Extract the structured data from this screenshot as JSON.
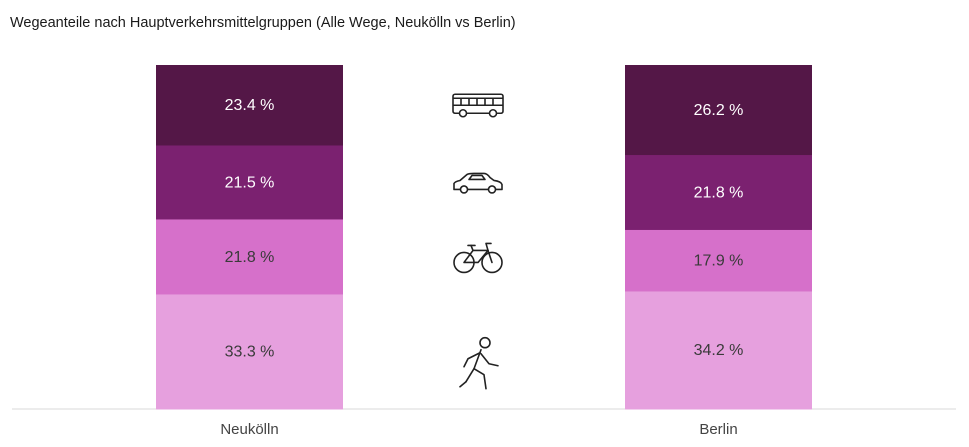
{
  "chart_data": {
    "type": "bar",
    "stacked": true,
    "normalized": true,
    "title": "Wegeanteile nach Hauptverkehrsmittelgruppen (Alle Wege, Neukölln vs Berlin)",
    "categories": [
      "Neukölln",
      "Berlin"
    ],
    "series": [
      {
        "icon": "bus-icon",
        "color": "#541747",
        "label_color": "#ffffff",
        "values": [
          23.4,
          26.2
        ],
        "labels": [
          "23.4 %",
          "26.2 %"
        ]
      },
      {
        "icon": "car-icon",
        "color": "#7B2170",
        "label_color": "#ffffff",
        "values": [
          21.5,
          21.8
        ],
        "labels": [
          "21.5 %",
          "21.8 %"
        ]
      },
      {
        "icon": "bicycle-icon",
        "color": "#D670CA",
        "label_color": "#3a3a3a",
        "values": [
          21.8,
          17.9
        ],
        "labels": [
          "21.8 %",
          "17.9 %"
        ]
      },
      {
        "icon": "pedestrian-icon",
        "color": "#E6A0DE",
        "label_color": "#3a3a3a",
        "values": [
          33.3,
          34.2
        ],
        "labels": [
          "33.3 %",
          "34.2 %"
        ]
      }
    ],
    "grid": false,
    "legend": "icons-center",
    "ylim": [
      0,
      100
    ]
  }
}
